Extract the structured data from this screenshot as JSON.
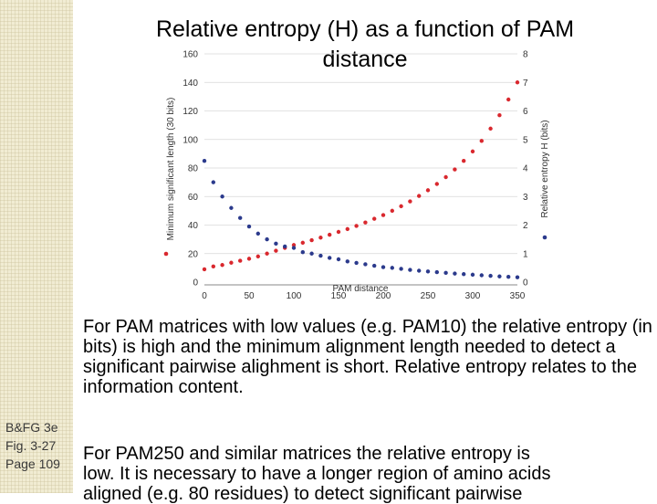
{
  "slide": {
    "title": "Relative entropy (H) as a function of PAM distance",
    "paragraph1": "For PAM matrices with low values (e.g. PAM10) the relative entropy (in bits) is high and the minimum alignment length needed to detect a significant pairwise alighment is short. Relative entropy relates to the information content.",
    "paragraph2_line1": "For PAM250 and similar matrices the relative entropy is",
    "paragraph2_line2": "low. It is necessary to have a longer region of amino acids",
    "paragraph2_line3": "aligned (e.g. 80 residues) to detect significant pairwise",
    "reference": [
      "B&FG 3e",
      "Fig. 3-27",
      "Page 109"
    ]
  },
  "colors": {
    "entropy_series": "#d9282e",
    "length_series": "#2b3a8c",
    "side_strip": "#f1ecd3"
  },
  "chart_data": {
    "type": "scatter",
    "xlabel": "PAM distance",
    "ylabel_left": "Minimum significant length (30 bits)",
    "ylabel_right": "Relative entropy H (bits)",
    "xlim": [
      0,
      350
    ],
    "ylim_left": [
      0,
      160
    ],
    "ylim_right": [
      0,
      8
    ],
    "x_ticks": [
      0,
      50,
      100,
      150,
      200,
      250,
      300,
      350
    ],
    "y_ticks_left": [
      0,
      20,
      40,
      60,
      80,
      100,
      120,
      140,
      160
    ],
    "y_ticks_right": [
      0,
      1,
      2,
      3,
      4,
      5,
      6,
      7,
      8
    ],
    "series": [
      {
        "axis": "right",
        "color": "#d9282e",
        "x": [
          0,
          10,
          20,
          30,
          40,
          50,
          60,
          70,
          80,
          90,
          100,
          110,
          120,
          130,
          140,
          150,
          160,
          170,
          180,
          190,
          200,
          210,
          220,
          230,
          240,
          250,
          260,
          270,
          280,
          290,
          300,
          310,
          320,
          330,
          340,
          350
        ],
        "y": [
          0.45,
          0.55,
          0.6,
          0.68,
          0.75,
          0.82,
          0.9,
          1.0,
          1.1,
          1.2,
          1.3,
          1.38,
          1.47,
          1.56,
          1.66,
          1.76,
          1.86,
          1.97,
          2.09,
          2.22,
          2.35,
          2.5,
          2.66,
          2.83,
          3.02,
          3.22,
          3.44,
          3.68,
          3.95,
          4.25,
          4.58,
          4.95,
          5.38,
          5.85,
          6.4,
          7.0
        ]
      },
      {
        "axis": "left",
        "color": "#2b3a8c",
        "x": [
          0,
          10,
          20,
          30,
          40,
          50,
          60,
          70,
          80,
          90,
          100,
          110,
          120,
          130,
          140,
          150,
          160,
          170,
          180,
          190,
          200,
          210,
          220,
          230,
          240,
          250,
          260,
          270,
          280,
          290,
          300,
          310,
          320,
          330,
          340,
          350
        ],
        "y": [
          85,
          70,
          60,
          52,
          45,
          39,
          34,
          30,
          27,
          25,
          24,
          21,
          20,
          18.5,
          17,
          16,
          14.5,
          13.5,
          12.5,
          11.5,
          10.5,
          10,
          9.3,
          8.6,
          8,
          7.5,
          7,
          6.5,
          6,
          5.6,
          5.2,
          4.8,
          4.4,
          4,
          3.7,
          3.4
        ]
      }
    ]
  }
}
